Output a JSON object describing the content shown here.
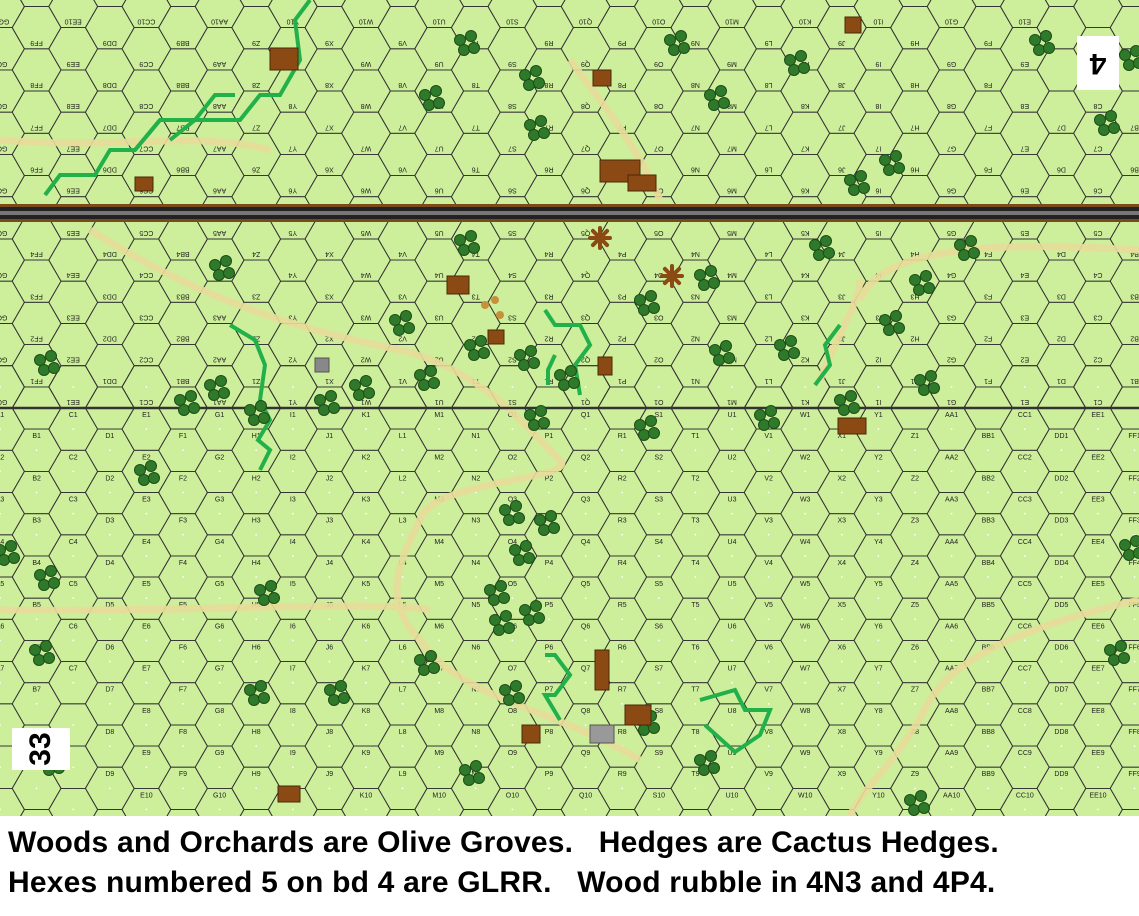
{
  "map": {
    "top_board": {
      "number": "4",
      "orientation": "inverted"
    },
    "bottom_board": {
      "number": "33"
    },
    "columns": [
      "A",
      "B",
      "C",
      "D",
      "E",
      "F",
      "G",
      "H",
      "I",
      "J",
      "K",
      "L",
      "M",
      "N",
      "O",
      "P",
      "Q",
      "R",
      "S",
      "T",
      "U",
      "V",
      "W",
      "X",
      "Y",
      "Z",
      "AA",
      "BB",
      "CC",
      "DD",
      "EE",
      "FF",
      "GG"
    ],
    "rows": 10,
    "colors": {
      "terrain": "#cdee9a",
      "hexline": "#333",
      "woods": "#2f7a2a",
      "hedge": "#22b04a",
      "building": "#8b4a14",
      "road": "#e8dc9a"
    }
  },
  "captions": {
    "line1": "Woods and Orchards are Olive Groves.   Hedges are Cactus Hedges.",
    "line2": "Hexes numbered 5 on bd 4 are GLRR.   Wood rubble in 4N3 and 4P4."
  }
}
